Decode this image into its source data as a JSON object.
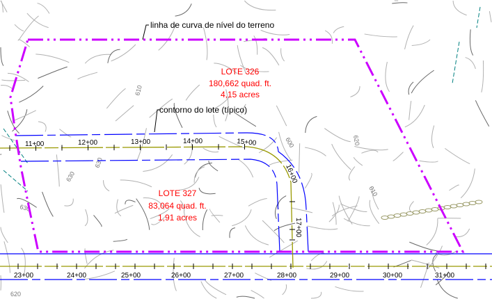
{
  "annotations": {
    "contour_note": "linha de curva de nível do terreno",
    "lot_outline_note": "contorno do lote (típico)"
  },
  "lots": [
    {
      "name": "LOTE 326",
      "area": "180,662 quad. ft.",
      "acres": "4,15 acres"
    },
    {
      "name": "LOTE 327",
      "area": "83,064 quad. ft.",
      "acres": "1,91 acres"
    }
  ],
  "upper_alignment_stations": [
    "11+00",
    "12+00",
    "13+00",
    "14+00",
    "15+00",
    "16+00",
    "17+00"
  ],
  "lower_alignment_stations": [
    "23+00",
    "24+00",
    "25+00",
    "26+00",
    "27+00",
    "28+00",
    "29+00",
    "30+00",
    "31+00"
  ],
  "contour_labels": [
    "610",
    "600",
    "620",
    "630",
    "630",
    "630",
    "610",
    "620"
  ],
  "colors": {
    "property_line": "#cc00ff",
    "lot_offset": "#0000ff",
    "alignment": "#999900",
    "lot_label": "#ff0000",
    "contour": "#a0a0a0"
  }
}
